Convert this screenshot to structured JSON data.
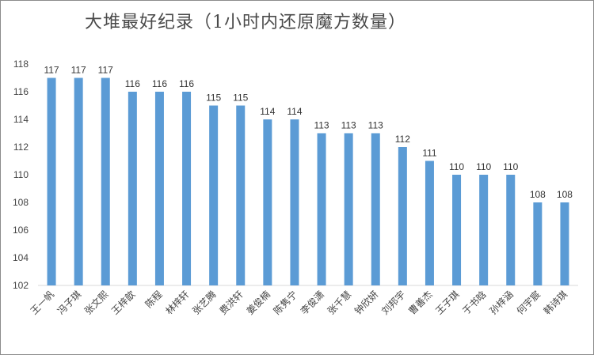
{
  "chart_data": {
    "type": "bar",
    "title": "大堆最好纪录（1小时内还原魔方数量）",
    "xlabel": "",
    "ylabel": "",
    "ylim": [
      102,
      118
    ],
    "yticks": [
      102,
      104,
      106,
      108,
      110,
      112,
      114,
      116,
      118
    ],
    "grid": false,
    "legend": "none",
    "bar_color": "#5b9bd5",
    "data_labels": true,
    "categories": [
      "王一帆",
      "冯子琪",
      "张文熙",
      "王梓歆",
      "陈程",
      "林梓轩",
      "张艺腾",
      "费洪轩",
      "姜俊楠",
      "陈隽宁",
      "李俊潇",
      "张千慧",
      "钟欣妍",
      "刘邦宇",
      "曹善杰",
      "王子琪",
      "于书晗",
      "孙梓涵",
      "何宇宸",
      "韩诗琪"
    ],
    "values": [
      117,
      117,
      117,
      116,
      116,
      116,
      115,
      115,
      114,
      114,
      113,
      113,
      113,
      112,
      111,
      110,
      110,
      110,
      108,
      108
    ]
  }
}
